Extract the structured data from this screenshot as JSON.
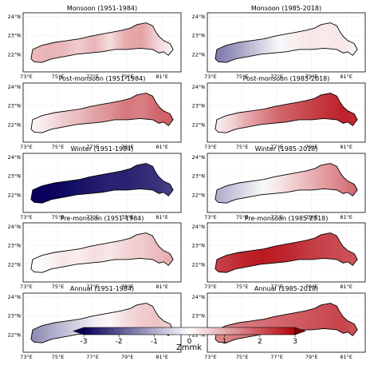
{
  "panels": [
    {
      "title": "Monsoon (1951-1984)",
      "field": [
        0.8,
        0.9,
        0.85,
        0.6,
        0.9,
        0.4,
        1.0,
        1.1,
        0.5,
        0.1
      ]
    },
    {
      "title": "Monsoon (1985-2018)",
      "field": [
        -1.6,
        -1.3,
        -0.9,
        -0.5,
        -0.1,
        0.2,
        0.3,
        0.25,
        0.3,
        0.1
      ]
    },
    {
      "title": "Post-monsoon (1951-1984)",
      "field": [
        0.1,
        0.3,
        0.6,
        0.8,
        1.1,
        1.3,
        1.6,
        1.5,
        1.8,
        1.9
      ]
    },
    {
      "title": "Post-monsoon (1985-2018)",
      "field": [
        0.2,
        0.5,
        1.0,
        1.4,
        1.8,
        2.0,
        2.2,
        2.4,
        2.6,
        2.5
      ]
    },
    {
      "title": "Winter (1951-1984)",
      "field": [
        -3.0,
        -3.0,
        -2.9,
        -2.8,
        -2.7,
        -2.6,
        -2.6,
        -2.5,
        -2.4,
        -2.2
      ]
    },
    {
      "title": "Winter (1985-2018)",
      "field": [
        -1.0,
        -0.7,
        -0.4,
        -0.1,
        0.3,
        0.6,
        0.9,
        1.2,
        1.5,
        1.8
      ]
    },
    {
      "title": "Pre-monsoon (1951-1984)",
      "field": [
        0.0,
        0.1,
        0.3,
        0.2,
        0.4,
        0.3,
        0.5,
        0.6,
        0.8,
        1.0
      ]
    },
    {
      "title": "Pre-monsoon (1985-2018)",
      "field": [
        2.2,
        2.4,
        2.6,
        2.7,
        2.6,
        2.5,
        2.3,
        2.2,
        2.1,
        2.0
      ]
    },
    {
      "title": "Annual (1951-1984)",
      "field": [
        -1.4,
        -1.1,
        -0.8,
        -0.5,
        -0.2,
        0.1,
        0.4,
        0.6,
        0.7,
        0.5
      ]
    },
    {
      "title": "Annual (1985-2018)",
      "field": [
        1.4,
        1.5,
        1.6,
        1.7,
        1.8,
        1.9,
        2.0,
        2.1,
        2.2,
        2.0
      ]
    }
  ],
  "lat_ticks": [
    "24°N",
    "23°N",
    "22°N"
  ],
  "lon_ticks": [
    "73°E",
    "75°E",
    "77°E",
    "79°E",
    "81°E"
  ],
  "colorbar": {
    "label": "Zmmk",
    "ticks": [
      "-3",
      "-2",
      "-1",
      "0",
      "1",
      "2",
      "3"
    ],
    "min": -3,
    "max": 3,
    "colors": [
      "#08005c",
      "#ffffff",
      "#b3000a"
    ]
  }
}
